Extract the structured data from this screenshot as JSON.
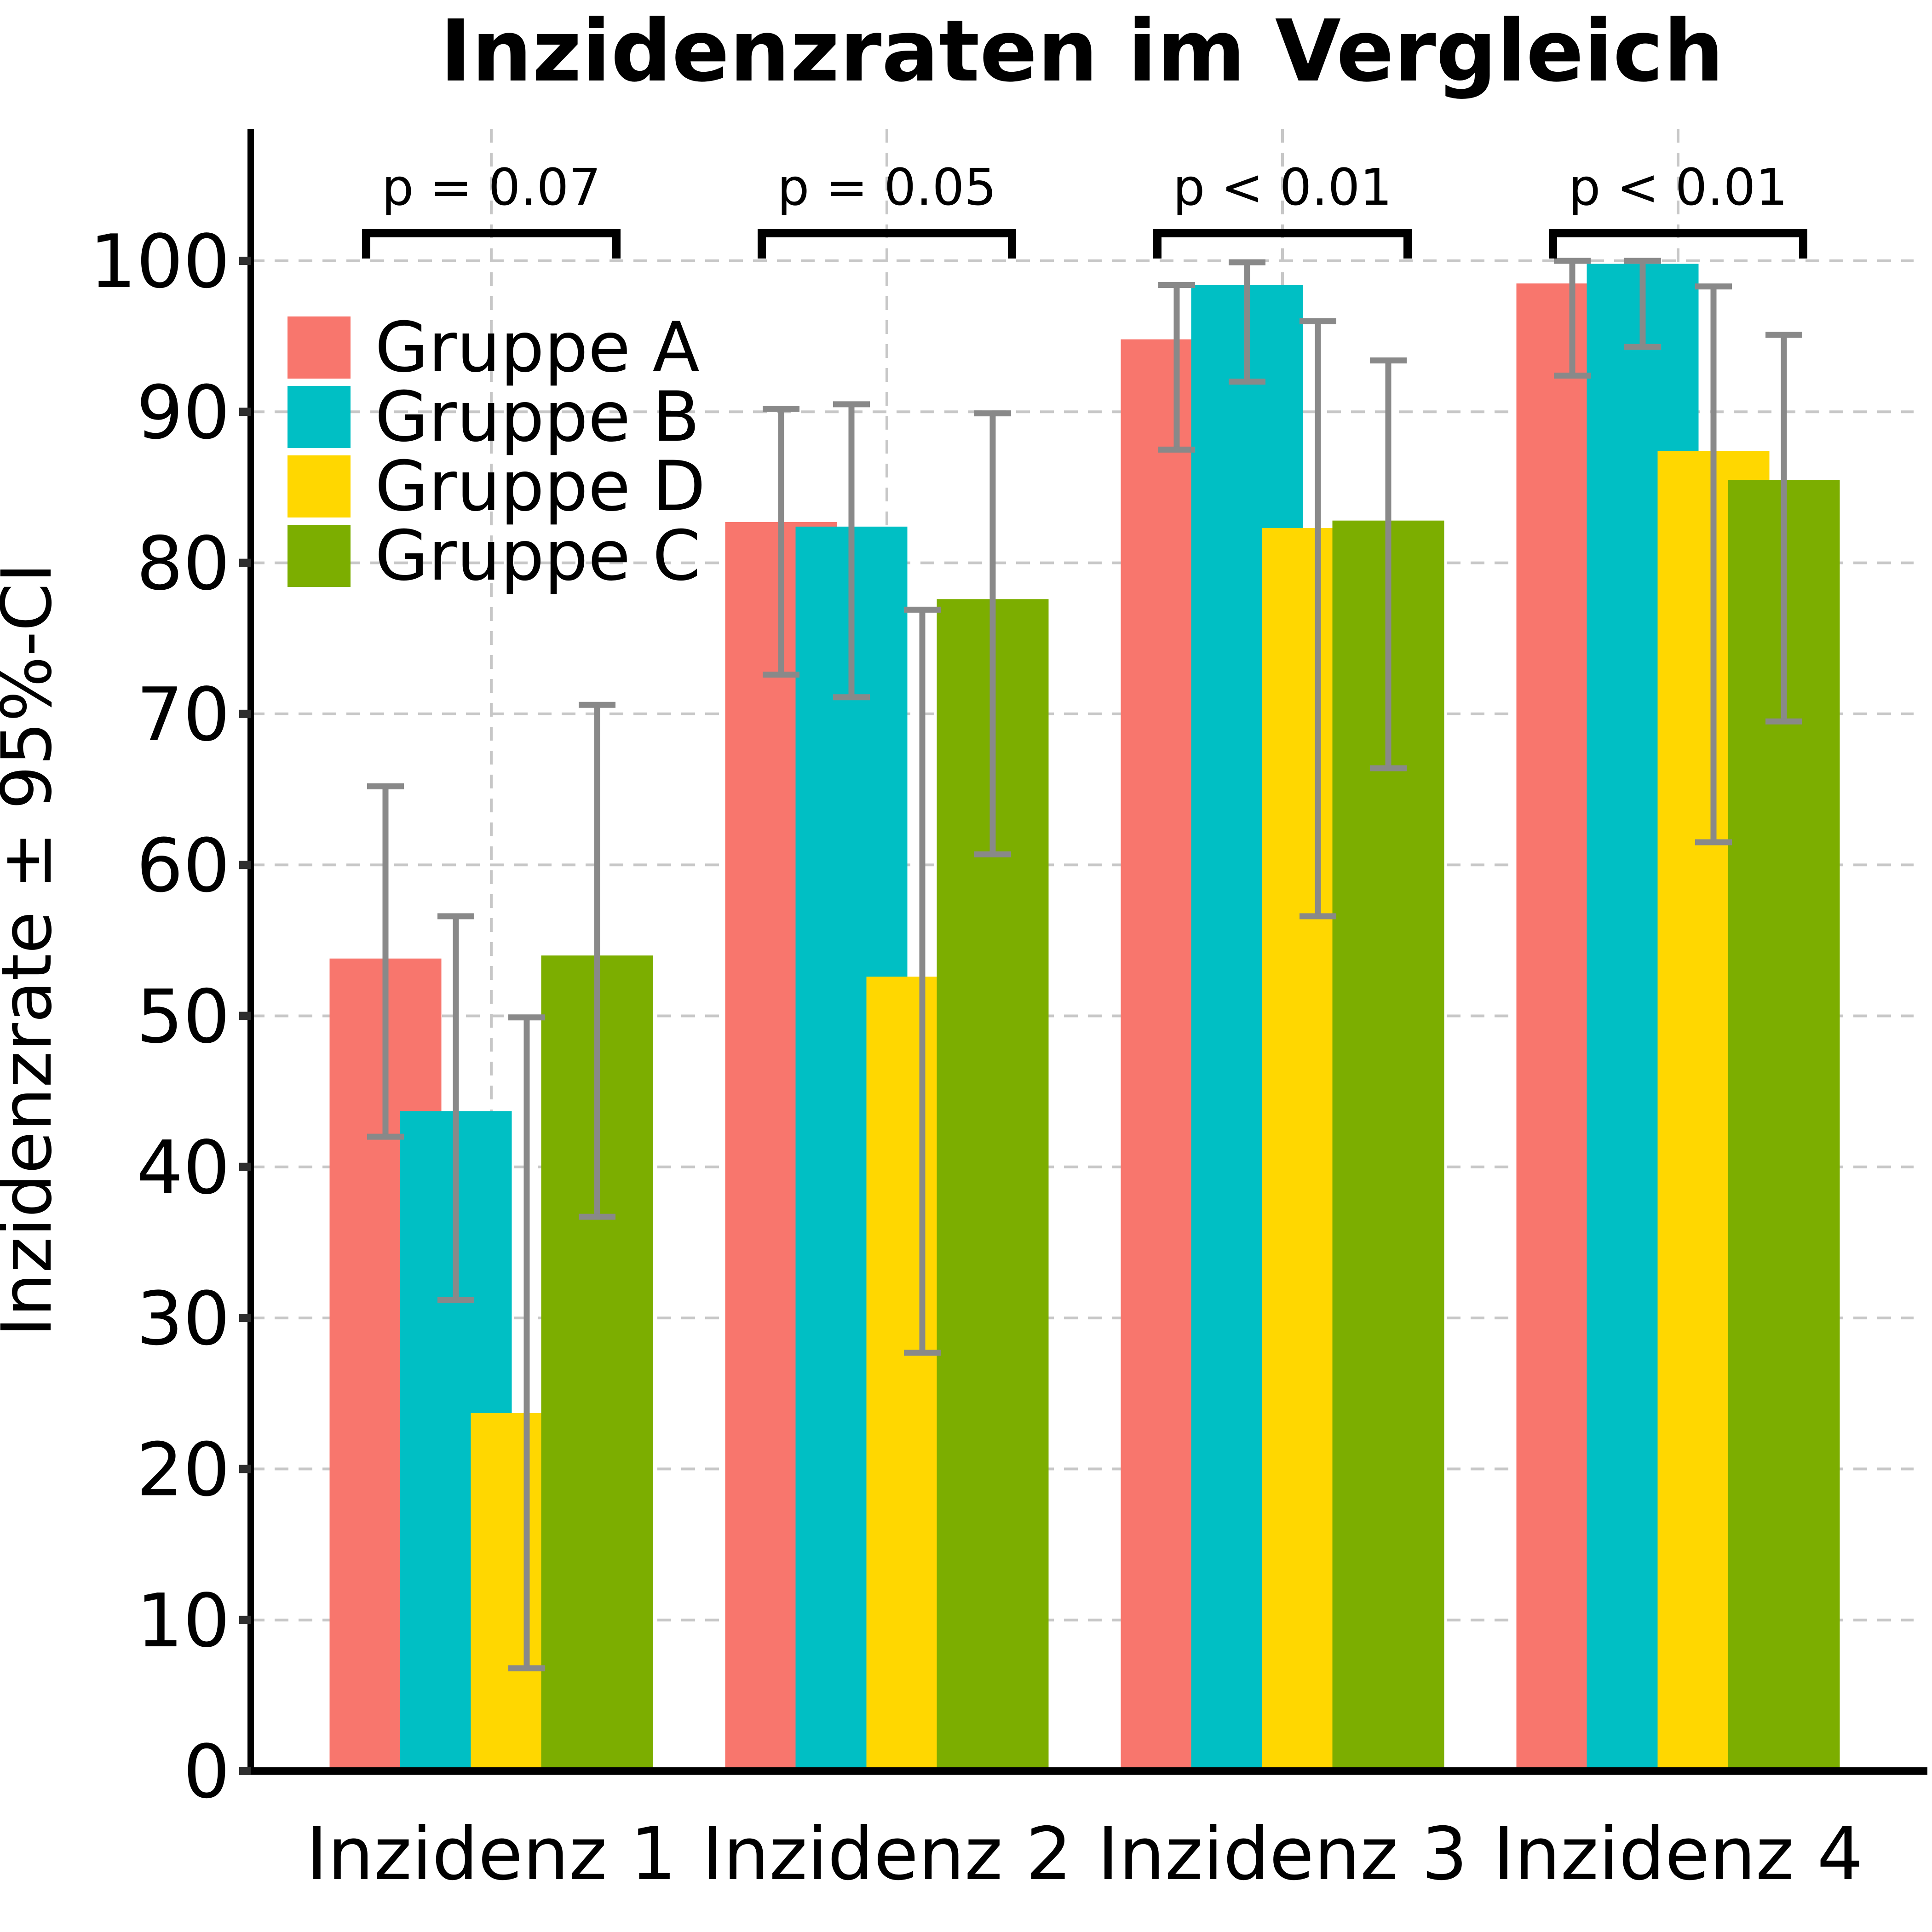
{
  "title": "Inzidenzraten im Vergleich",
  "chart_data": {
    "type": "bar",
    "title": "Inzidenzraten im Vergleich",
    "xlabel": "",
    "ylabel": "Inzidenzrate ± 95%-CI",
    "categories": [
      "Inzidenz 1",
      "Inzidenz 2",
      "Inzidenz 3",
      "Inzidenz 4"
    ],
    "ylim": [
      0,
      108
    ],
    "yticks": [
      0,
      10,
      20,
      30,
      40,
      50,
      60,
      70,
      80,
      90,
      100
    ],
    "grid": true,
    "grid_style": "dashed",
    "legend_position": "upper-left",
    "series": [
      {
        "name": "Gruppe A",
        "color": "#F8766D",
        "values": [
          53.8,
          82.7,
          94.8,
          98.5
        ],
        "ci_low": [
          42.0,
          72.6,
          87.5,
          92.4
        ],
        "ci_high": [
          65.2,
          90.2,
          98.4,
          100.0
        ]
      },
      {
        "name": "Gruppe B",
        "color": "#00BFC4",
        "values": [
          43.7,
          82.4,
          98.4,
          99.8
        ],
        "ci_low": [
          31.2,
          71.1,
          92.0,
          94.3
        ],
        "ci_high": [
          56.6,
          90.5,
          99.9,
          100.0
        ]
      },
      {
        "name": "Gruppe D",
        "color": "#FFD700",
        "values": [
          23.7,
          52.6,
          82.3,
          87.4
        ],
        "ci_low": [
          6.8,
          27.7,
          56.6,
          61.5
        ],
        "ci_high": [
          49.9,
          76.9,
          96.0,
          98.3
        ]
      },
      {
        "name": "Gruppe C",
        "color": "#7CAE00",
        "values": [
          54.0,
          77.6,
          82.8,
          85.5
        ],
        "ci_low": [
          36.7,
          60.7,
          66.4,
          69.5
        ],
        "ci_high": [
          70.6,
          89.9,
          93.4,
          95.1
        ]
      }
    ],
    "annotations": [
      {
        "label": "p = 0.07",
        "category_index": 0
      },
      {
        "label": "p = 0.05",
        "category_index": 1
      },
      {
        "label": "p < 0.01",
        "category_index": 2
      },
      {
        "label": "p < 0.01",
        "category_index": 3
      }
    ],
    "colors": {
      "error_bar": "#898989",
      "grid": "#C7C7C7",
      "tick": "#2E2E2E",
      "spine": "#000000",
      "bracket": "#000000",
      "background": "#FFFFFF"
    }
  }
}
